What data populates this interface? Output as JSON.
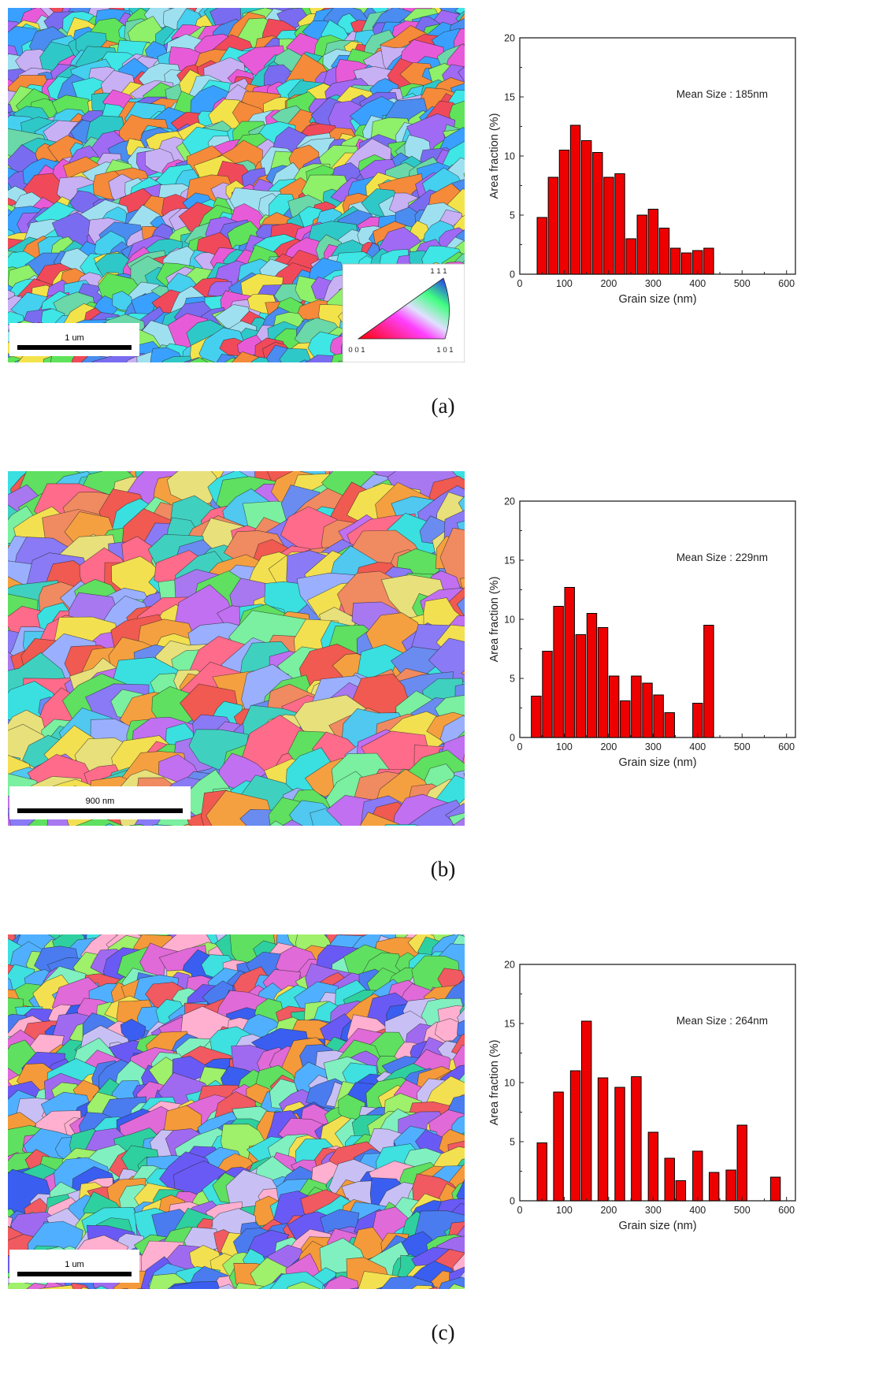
{
  "chart_data": [
    {
      "panel": "a",
      "type": "bar",
      "caption": "(a)",
      "annotation": "Mean Size : 185nm",
      "xlabel": "Grain size (nm)",
      "ylabel": "Area fraction (%)",
      "xlim": [
        0,
        620
      ],
      "ylim": [
        0,
        20
      ],
      "xticks": [
        0,
        100,
        200,
        300,
        400,
        500,
        600
      ],
      "yticks": [
        0,
        5,
        10,
        15,
        20
      ],
      "x": [
        50,
        75,
        100,
        125,
        150,
        175,
        200,
        225,
        250,
        275,
        300,
        325,
        350,
        375,
        400,
        425
      ],
      "values": [
        4.8,
        8.2,
        10.5,
        12.6,
        11.3,
        10.3,
        8.2,
        8.5,
        3.0,
        5.0,
        5.5,
        3.9,
        2.2,
        1.8,
        2.0,
        2.2
      ],
      "bar_color": "#ee0000",
      "image": {
        "scalebar": "1 um",
        "ipf_labels": [
          "1 1 1",
          "0 0 1",
          "1 0 1"
        ]
      }
    },
    {
      "panel": "b",
      "type": "bar",
      "caption": "(b)",
      "annotation": "Mean Size : 229nm",
      "xlabel": "Grain size (nm)",
      "ylabel": "Area fraction (%)",
      "xlim": [
        0,
        620
      ],
      "ylim": [
        0,
        20
      ],
      "xticks": [
        0,
        100,
        200,
        300,
        400,
        500,
        600
      ],
      "yticks": [
        0,
        5,
        10,
        15,
        20
      ],
      "x": [
        37,
        62,
        87,
        112,
        137,
        162,
        187,
        212,
        237,
        262,
        287,
        312,
        337,
        400,
        425
      ],
      "values": [
        3.5,
        7.3,
        11.1,
        12.7,
        8.7,
        10.5,
        9.3,
        5.2,
        3.1,
        5.2,
        4.6,
        3.6,
        2.1,
        2.9,
        9.5
      ],
      "bar_color": "#ee0000",
      "image": {
        "scalebar": "900 nm"
      }
    },
    {
      "panel": "c",
      "type": "bar",
      "caption": "(c)",
      "annotation": "Mean Size : 264nm",
      "xlabel": "Grain size (nm)",
      "ylabel": "Area fraction (%)",
      "xlim": [
        0,
        620
      ],
      "ylim": [
        0,
        20
      ],
      "xticks": [
        0,
        100,
        200,
        300,
        400,
        500,
        600
      ],
      "yticks": [
        0,
        5,
        10,
        15,
        20
      ],
      "x": [
        50,
        87,
        125,
        150,
        187,
        225,
        262,
        300,
        337,
        362,
        400,
        437,
        475,
        500,
        575
      ],
      "values": [
        4.9,
        9.2,
        11.0,
        15.2,
        10.4,
        9.6,
        10.5,
        5.8,
        3.6,
        1.7,
        4.2,
        2.4,
        2.6,
        6.4,
        2.0
      ],
      "bar_color": "#ee0000",
      "image": {
        "scalebar": "1 um"
      }
    }
  ]
}
